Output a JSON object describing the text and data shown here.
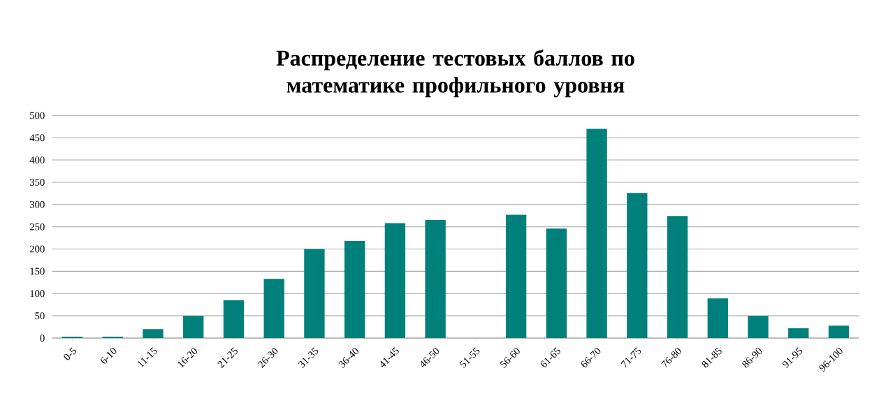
{
  "chart_data": {
    "type": "bar",
    "title": "Распределение тестовых  баллов по математике профильного уровня",
    "categories": [
      "0-5",
      "6-10",
      "11-15",
      "16-20",
      "21-25",
      "26-30",
      "31-35",
      "36-40",
      "41-45",
      "46-50",
      "51-55",
      "56-60",
      "61-65",
      "66-70",
      "71-75",
      "76-80",
      "81-85",
      "86-90",
      "91-95",
      "96-100"
    ],
    "values": [
      3,
      3,
      20,
      50,
      85,
      133,
      200,
      218,
      258,
      265,
      0,
      277,
      246,
      470,
      326,
      274,
      89,
      50,
      22,
      28
    ],
    "color": "#00807a",
    "ylim": [
      0,
      500
    ],
    "yticks": [
      0,
      50,
      100,
      150,
      200,
      250,
      300,
      350,
      400,
      450,
      500
    ],
    "grid": "y"
  }
}
